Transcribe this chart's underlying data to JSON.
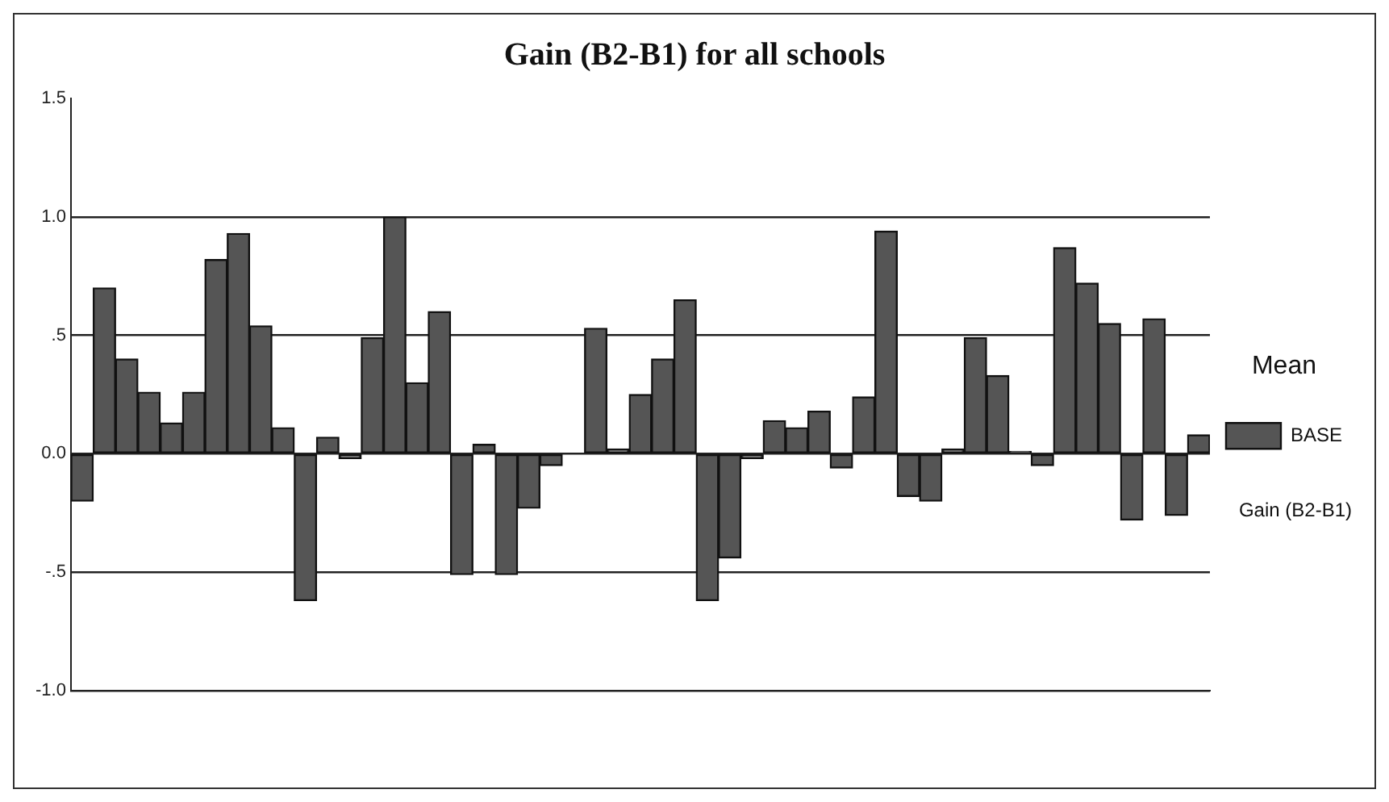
{
  "chart_data": {
    "type": "bar",
    "title": "Gain (B2-B1) for all schools",
    "legend_title": "Mean",
    "annotations": [
      "Gain (B2-B1)"
    ],
    "categories": [
      null,
      null,
      null,
      null,
      null,
      null,
      null,
      null,
      null,
      null,
      null,
      null,
      null,
      null,
      null,
      null,
      null,
      null,
      null,
      null,
      null,
      null,
      null,
      null,
      null,
      null,
      null,
      null,
      null,
      null,
      null,
      null,
      null,
      null,
      null,
      null,
      null,
      null,
      null,
      null,
      null,
      null,
      null,
      null,
      null,
      null,
      null,
      null,
      null,
      null,
      null
    ],
    "series": [
      {
        "name": "BASE",
        "color": "#555555",
        "values": [
          -0.2,
          0.7,
          0.4,
          0.26,
          0.13,
          0.26,
          0.82,
          0.93,
          0.54,
          0.11,
          -0.62,
          0.07,
          -0.02,
          0.49,
          1.0,
          0.3,
          0.6,
          -0.51,
          0.04,
          -0.51,
          -0.23,
          -0.05,
          0.0,
          0.53,
          0.02,
          0.25,
          0.4,
          0.65,
          -0.62,
          -0.44,
          -0.02,
          0.14,
          0.11,
          0.18,
          -0.06,
          0.24,
          0.94,
          -0.18,
          -0.2,
          0.02,
          0.49,
          0.33,
          0.01,
          -0.05,
          0.87,
          0.72,
          0.55,
          -0.28,
          0.57,
          -0.26,
          0.08
        ]
      }
    ],
    "ylim": [
      -1,
      1.5
    ],
    "yticks": [
      {
        "value": -1,
        "label": "-1.0"
      },
      {
        "value": -0.5,
        "label": "-.5"
      },
      {
        "value": 0,
        "label": "0.0"
      },
      {
        "value": 0.5,
        "label": ".5"
      },
      {
        "value": 1,
        "label": "1.0"
      },
      1.5
    ],
    "grid": "y",
    "legend": "right"
  }
}
